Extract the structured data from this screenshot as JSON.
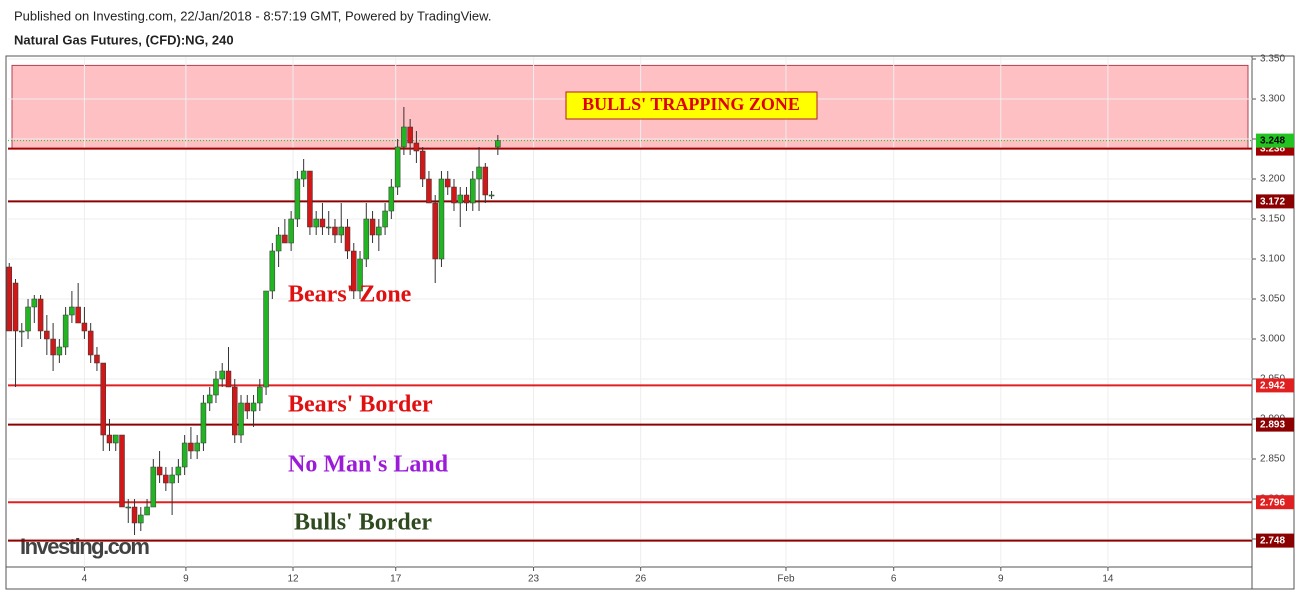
{
  "header": {
    "published": "Published on Investing.com, 22/Jan/2018 - 8:57:19 GMT, Powered by TradingView.",
    "instrument": "Natural Gas Futures, (CFD):NG, 240"
  },
  "chart_data": {
    "type": "candlestick",
    "watermark": "Investing.com",
    "up_color": "#22b422",
    "down_color": "#d01818",
    "grid": true,
    "x": [
      0,
      1,
      2,
      3,
      4,
      5,
      6,
      7,
      8,
      9,
      10,
      11,
      12,
      13,
      14,
      15,
      16,
      17,
      18,
      19,
      20,
      21,
      22,
      23,
      24,
      25,
      26,
      27,
      28,
      29,
      30,
      31,
      32,
      33,
      34,
      35,
      36,
      37,
      38,
      39,
      40,
      41,
      42,
      43,
      44,
      45,
      46,
      47,
      48,
      49,
      50,
      51,
      52,
      53,
      54,
      55,
      56,
      57,
      58,
      59,
      60,
      61,
      62,
      63,
      64,
      65,
      66,
      67,
      68,
      69,
      70,
      71,
      72,
      73,
      74,
      75,
      76,
      77,
      78
    ],
    "open": [
      3.09,
      3.07,
      3.01,
      3.01,
      3.04,
      3.05,
      3.01,
      3.0,
      2.98,
      2.99,
      3.03,
      3.04,
      3.02,
      3.01,
      2.98,
      2.97,
      2.88,
      2.87,
      2.88,
      2.79,
      2.79,
      2.77,
      2.78,
      2.79,
      2.84,
      2.83,
      2.82,
      2.83,
      2.84,
      2.87,
      2.86,
      2.87,
      2.92,
      2.93,
      2.95,
      2.96,
      2.94,
      2.88,
      2.92,
      2.91,
      2.92,
      2.94,
      3.06,
      3.11,
      3.13,
      3.12,
      3.15,
      3.2,
      3.21,
      3.14,
      3.15,
      3.14,
      3.14,
      3.13,
      3.14,
      3.11,
      3.06,
      3.1,
      3.15,
      3.13,
      3.14,
      3.16,
      3.19,
      3.24,
      3.265,
      3.245,
      3.235,
      3.2,
      3.17,
      3.1,
      3.2,
      3.19,
      3.17,
      3.18,
      3.17,
      3.2,
      3.215,
      3.18,
      3.24
    ],
    "high": [
      3.095,
      3.075,
      3.02,
      3.05,
      3.055,
      3.055,
      3.03,
      3.02,
      3.0,
      3.04,
      3.06,
      3.07,
      3.04,
      3.02,
      2.99,
      2.97,
      2.9,
      2.88,
      2.88,
      2.8,
      2.8,
      2.79,
      2.8,
      2.85,
      2.86,
      2.84,
      2.84,
      2.85,
      2.88,
      2.89,
      2.88,
      2.93,
      2.94,
      2.96,
      2.97,
      2.99,
      2.95,
      2.93,
      2.93,
      2.93,
      2.95,
      3.06,
      3.12,
      3.14,
      3.15,
      3.16,
      3.21,
      3.225,
      3.21,
      3.16,
      3.17,
      3.16,
      3.15,
      3.17,
      3.15,
      3.12,
      3.11,
      3.17,
      3.16,
      3.15,
      3.17,
      3.2,
      3.25,
      3.29,
      3.275,
      3.26,
      3.24,
      3.21,
      3.18,
      3.21,
      3.21,
      3.2,
      3.19,
      3.19,
      3.21,
      3.24,
      3.22,
      3.185,
      3.255
    ],
    "low": [
      3.01,
      2.94,
      2.99,
      3.0,
      3.02,
      3.0,
      2.98,
      2.96,
      2.97,
      2.98,
      3.02,
      3.02,
      3.0,
      2.97,
      2.96,
      2.86,
      2.86,
      2.86,
      2.79,
      2.77,
      2.755,
      2.76,
      2.78,
      2.79,
      2.82,
      2.81,
      2.78,
      2.82,
      2.83,
      2.85,
      2.85,
      2.86,
      2.91,
      2.92,
      2.94,
      2.94,
      2.87,
      2.87,
      2.9,
      2.89,
      2.91,
      2.93,
      3.05,
      3.09,
      3.12,
      3.11,
      3.14,
      3.19,
      3.13,
      3.13,
      3.13,
      3.13,
      3.12,
      3.12,
      3.1,
      3.05,
      3.05,
      3.09,
      3.12,
      3.11,
      3.13,
      3.15,
      3.18,
      3.23,
      3.23,
      3.22,
      3.19,
      3.17,
      3.07,
      3.09,
      3.18,
      3.16,
      3.14,
      3.16,
      3.16,
      3.16,
      3.17,
      3.175,
      3.23
    ],
    "close": [
      3.01,
      3.01,
      3.01,
      3.04,
      3.05,
      3.01,
      3.0,
      2.98,
      2.99,
      3.03,
      3.04,
      3.02,
      3.01,
      2.98,
      2.97,
      2.88,
      2.87,
      2.88,
      2.79,
      2.79,
      2.77,
      2.78,
      2.79,
      2.84,
      2.83,
      2.82,
      2.83,
      2.84,
      2.87,
      2.86,
      2.87,
      2.92,
      2.93,
      2.95,
      2.96,
      2.94,
      2.88,
      2.92,
      2.91,
      2.92,
      2.94,
      3.06,
      3.11,
      3.13,
      3.12,
      3.15,
      3.2,
      3.21,
      3.14,
      3.15,
      3.14,
      3.14,
      3.13,
      3.14,
      3.11,
      3.06,
      3.1,
      3.15,
      3.13,
      3.14,
      3.16,
      3.19,
      3.24,
      3.265,
      3.245,
      3.235,
      3.2,
      3.17,
      3.1,
      3.2,
      3.19,
      3.17,
      3.18,
      3.17,
      3.2,
      3.215,
      3.18,
      3.18,
      3.248
    ],
    "xlim": [
      -0.2,
      198.4
    ],
    "xticks": [
      {
        "value": 12.0,
        "label": "4"
      },
      {
        "value": 28.2,
        "label": "9"
      },
      {
        "value": 45.3,
        "label": "12"
      },
      {
        "value": 61.7,
        "label": "17"
      },
      {
        "value": 83.7,
        "label": "23"
      },
      {
        "value": 100.8,
        "label": "26"
      },
      {
        "value": 124.0,
        "label": "Feb"
      },
      {
        "value": 141.2,
        "label": "6"
      },
      {
        "value": 158.3,
        "label": "9"
      },
      {
        "value": 175.4,
        "label": "14"
      }
    ],
    "ylim": [
      2.715,
      3.3525
    ],
    "yticks": [
      {
        "value": 3.35,
        "label": "3.350"
      },
      {
        "value": 3.3,
        "label": "3.300"
      },
      {
        "value": 3.25,
        "label": "3.250"
      },
      {
        "value": 3.2,
        "label": "3.200"
      },
      {
        "value": 3.15,
        "label": "3.150"
      },
      {
        "value": 3.1,
        "label": "3.100"
      },
      {
        "value": 3.05,
        "label": "3.050"
      },
      {
        "value": 3.0,
        "label": "3.000"
      },
      {
        "value": 2.95,
        "label": "2.950"
      },
      {
        "value": 2.9,
        "label": "2.900"
      },
      {
        "value": 2.85,
        "label": "2.850"
      },
      {
        "value": 2.8,
        "label": "2.800"
      },
      {
        "value": 2.75,
        "label": "2.750"
      }
    ],
    "zone": {
      "from": 3.238,
      "to": 3.342,
      "color": "#ffc0c4",
      "label": "BULLS' TRAPPING ZONE",
      "label_color": "#e00000",
      "label_bg": "#ffff00"
    },
    "levels": [
      {
        "value": 3.238,
        "color": "#a00000"
      },
      {
        "value": 3.172,
        "color": "#8b0000"
      },
      {
        "value": 2.942,
        "color": "#e02020"
      },
      {
        "value": 2.893,
        "color": "#8b0000"
      },
      {
        "value": 2.796,
        "color": "#e02020"
      },
      {
        "value": 2.748,
        "color": "#8b0000"
      }
    ],
    "current_price": {
      "value": 3.248,
      "color": "#22c422"
    },
    "annotations": [
      {
        "text": "Bears' Zone",
        "color": "#e01010"
      },
      {
        "text": "Bears' Border",
        "color": "#e01010"
      },
      {
        "text": "No Man's Land",
        "color": "#9b1bd8"
      },
      {
        "text": "Bulls' Border",
        "color": "#2e4a1e"
      }
    ]
  }
}
